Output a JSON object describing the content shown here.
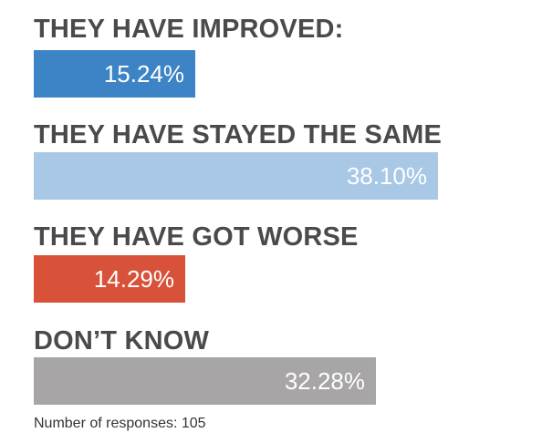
{
  "chart_data": {
    "type": "bar",
    "orientation": "horizontal",
    "categories": [
      "THEY HAVE IMPROVED:",
      "THEY HAVE STAYED THE SAME",
      "THEY HAVE GOT WORSE",
      "DON’T KNOW"
    ],
    "values": [
      15.24,
      38.1,
      14.29,
      32.28
    ],
    "value_labels": [
      "15.24%",
      "38.10%",
      "14.29%",
      "32.28%"
    ],
    "colors": [
      "#3d84c6",
      "#a8c8e6",
      "#d8523a",
      "#a7a5a5"
    ],
    "xlim": [
      0,
      100
    ],
    "grid": false
  },
  "footnote": "Number of responses: 105"
}
